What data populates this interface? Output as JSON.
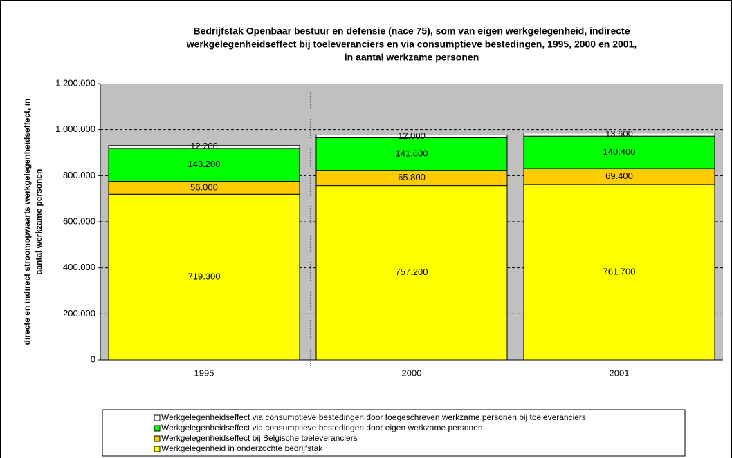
{
  "chart_data": {
    "type": "stacked_bar",
    "title": [
      "Bedrijfstak Openbaar bestuur en defensie (nace 75), som van eigen werkgelegenheid, indirecte",
      "werkgelegenheidseffect bij toeleveranciers en via consumptieve bestedingen, 1995, 2000 en 2001,",
      "in aantal werkzame personen"
    ],
    "y_label": [
      "directe en indirect stroomopwaarts werkgelegenheidseffect,  in",
      "aantal werkzame personen"
    ],
    "categories": [
      "1995",
      "2000",
      "2001"
    ],
    "ylim": [
      0,
      1200000
    ],
    "yticks": [
      0,
      {
        "value": 200000,
        "label": "200.000"
      },
      {
        "value": 400000,
        "label": "400.000"
      },
      {
        "value": 600000,
        "label": "600.000"
      },
      {
        "value": 800000,
        "label": "800.000"
      },
      {
        "value": 1000000,
        "label": "1.000.000"
      },
      {
        "value": 1200000,
        "label": "1.200.000"
      }
    ],
    "grid": true,
    "series": [
      {
        "name": "Werkgelegenheid in onderzochte bedrijfstak",
        "color": "#ffff00",
        "values": [
          719300,
          757200,
          761700
        ],
        "value_labels": [
          "719.300",
          "757.200",
          "761.700"
        ]
      },
      {
        "name": "Werkgelegenheidseffect bij Belgische toeleveranciers",
        "color": "#ffcc00",
        "values": [
          56000,
          65800,
          69400
        ],
        "value_labels": [
          "56.000",
          "65.800",
          "69.400"
        ]
      },
      {
        "name": "Werkgelegenheidseffect via consumptieve bestedingen door eigen werkzame personen",
        "color": "#00ff00",
        "values": [
          143200,
          141600,
          140400
        ],
        "value_labels": [
          "143.200",
          "141.600",
          "140.400"
        ]
      },
      {
        "name": "Werkgelegenheidseffect via consumptieve bestedingen door toegeschreven werkzame personen bij toeleveranciers",
        "color": "#ffffff",
        "values": [
          12200,
          12000,
          13600
        ],
        "value_labels": [
          "12.200",
          "12.000",
          "13.600"
        ]
      }
    ]
  }
}
